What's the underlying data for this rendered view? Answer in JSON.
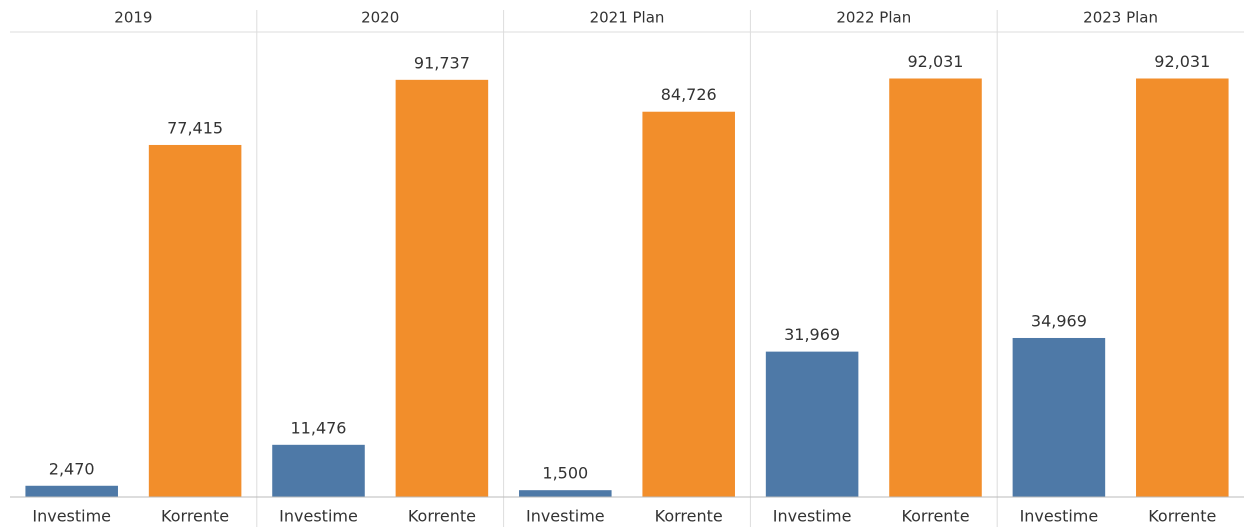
{
  "chart_data": {
    "type": "bar",
    "categories": [
      "2019",
      "2020",
      "2021 Plan",
      "2022 Plan",
      "2023 Plan"
    ],
    "series": [
      {
        "name": "Investime",
        "color": "#4e79a7",
        "values": [
          2470,
          11476,
          1500,
          31969,
          34969
        ],
        "value_labels": [
          "2,470",
          "11,476",
          "1,500",
          "31,969",
          "34,969"
        ]
      },
      {
        "name": "Korrente",
        "color": "#f28e2b",
        "values": [
          77415,
          91737,
          84726,
          92031,
          92031
        ],
        "value_labels": [
          "77,415",
          "91,737",
          "84,726",
          "92,031",
          "92,031"
        ]
      }
    ]
  }
}
